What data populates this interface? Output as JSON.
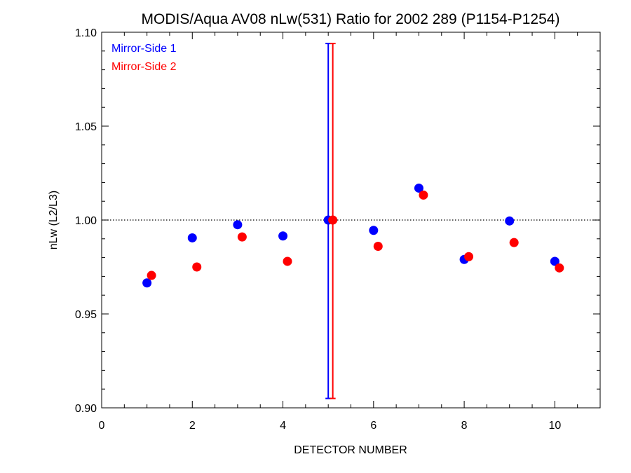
{
  "chart_data": {
    "type": "scatter",
    "title": "MODIS/Aqua AV08 nLw(531) Ratio for 2002 289 (P1154-P1254)",
    "xlabel": "DETECTOR NUMBER",
    "ylabel": "nLw (L2/L3)",
    "xlim": [
      0,
      11
    ],
    "ylim": [
      0.9,
      1.1
    ],
    "xticks": [
      0,
      2,
      4,
      6,
      8,
      10
    ],
    "xtick_labels": [
      "0",
      "2",
      "4",
      "6",
      "8",
      "10"
    ],
    "yticks": [
      0.9,
      0.95,
      1.0,
      1.05,
      1.1
    ],
    "ytick_labels": [
      "0.90",
      "0.95",
      "1.00",
      "1.05",
      "1.10"
    ],
    "reference_line": 1.0,
    "grid": false,
    "legend_position": "top-left",
    "series": [
      {
        "name": "Mirror-Side 1",
        "color": "#0000ff",
        "x": [
          1,
          2,
          3,
          4,
          5,
          6,
          7,
          8,
          9,
          10
        ],
        "y": [
          0.9665,
          0.9905,
          0.9975,
          0.9915,
          1.0,
          0.9945,
          1.017,
          0.979,
          0.9995,
          0.978
        ],
        "error_bars": [
          {
            "x": 5,
            "low": 0.905,
            "high": 1.094
          }
        ]
      },
      {
        "name": "Mirror-Side 2",
        "color": "#ff0000",
        "x": [
          1.1,
          2.1,
          3.1,
          4.1,
          5.1,
          6.1,
          7.1,
          8.1,
          9.1,
          10.1
        ],
        "y": [
          0.9705,
          0.975,
          0.991,
          0.978,
          1.0,
          0.986,
          1.0133,
          0.9805,
          0.988,
          0.9745
        ],
        "error_bars": [
          {
            "x": 5.1,
            "low": 0.905,
            "high": 1.094
          }
        ]
      }
    ]
  }
}
